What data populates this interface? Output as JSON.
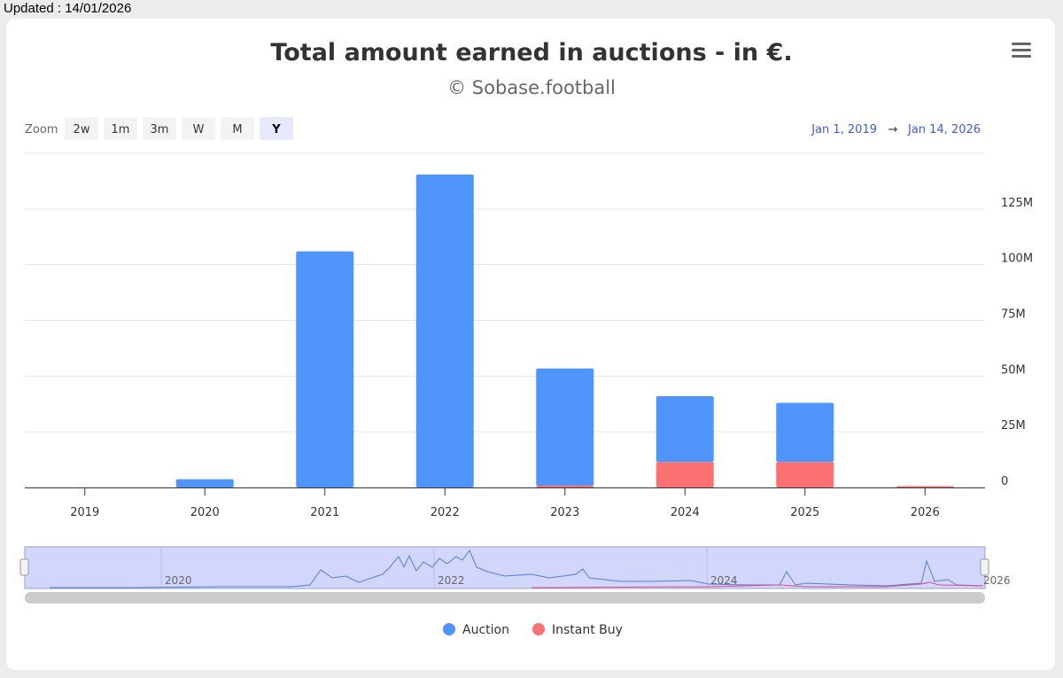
{
  "updated_label": "Updated : 14/01/2026",
  "zoom": {
    "label": "Zoom",
    "buttons": [
      "2w",
      "1m",
      "3m",
      "W",
      "M",
      "Y"
    ],
    "active": "Y"
  },
  "range": {
    "from": "Jan 1, 2019",
    "arrow": "→",
    "to": "Jan 14, 2026"
  },
  "navigator": {
    "labels": [
      "2020",
      "2022",
      "2024",
      "2026"
    ]
  },
  "colors": {
    "auction": "#4f95fb",
    "instant_buy": "#fc7272",
    "accent": "#3e5bd7"
  },
  "chart_data": {
    "type": "bar",
    "stacked": true,
    "title": "Total amount earned in auctions - in €.",
    "subtitle": "© Sobase.football",
    "categories": [
      "2019",
      "2020",
      "2021",
      "2022",
      "2023",
      "2024",
      "2025",
      "2026"
    ],
    "series": [
      {
        "name": "Instant Buy",
        "color": "#fc7272",
        "values": [
          0,
          0,
          0,
          0,
          0.8,
          11.5,
          11.5,
          0.6
        ]
      },
      {
        "name": "Auction",
        "color": "#4f95fb",
        "values": [
          0,
          3.7,
          106,
          140.5,
          52.6,
          29.5,
          26.5,
          0
        ]
      }
    ],
    "value_unit": "M",
    "y_ticks": [
      0,
      25,
      50,
      75,
      100,
      125
    ],
    "y_tick_labels": [
      "0",
      "25M",
      "50M",
      "75M",
      "100M",
      "125M"
    ],
    "ylim": [
      0,
      150
    ],
    "grid": true,
    "legend": "bottom-center",
    "legend_items": [
      "Auction",
      "Instant Buy"
    ]
  }
}
